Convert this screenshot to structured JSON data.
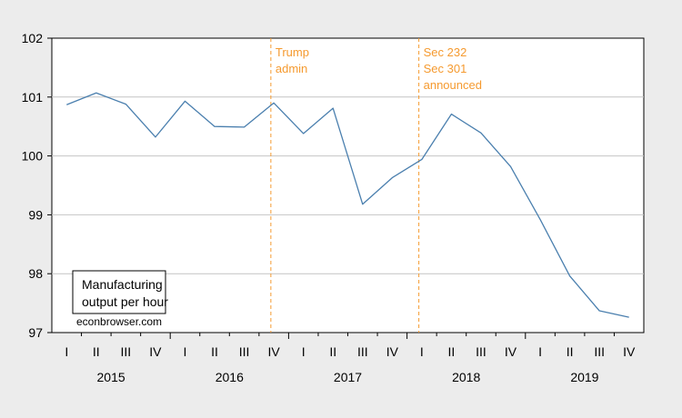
{
  "chart_data": {
    "type": "line",
    "title": "",
    "xlabel": "",
    "ylabel": "",
    "ylim": [
      97,
      102
    ],
    "yticks": [
      "97",
      "98",
      "99",
      "100",
      "101",
      "102"
    ],
    "grid": true,
    "x": [
      "2015 I",
      "2015 II",
      "2015 III",
      "2015 IV",
      "2016 I",
      "2016 II",
      "2016 III",
      "2016 IV",
      "2017 I",
      "2017 II",
      "2017 III",
      "2017 IV",
      "2018 I",
      "2018 II",
      "2018 III",
      "2018 IV",
      "2019 I",
      "2019 II",
      "2019 III",
      "2019 IV"
    ],
    "quarter_labels": [
      "I",
      "II",
      "III",
      "IV",
      "I",
      "II",
      "III",
      "IV",
      "I",
      "II",
      "III",
      "IV",
      "I",
      "II",
      "III",
      "IV",
      "I",
      "II",
      "III",
      "IV"
    ],
    "years": [
      "2015",
      "2016",
      "2017",
      "2018",
      "2019"
    ],
    "series": [
      {
        "name": "Manufacturing output per hour",
        "color": "#4a7fae",
        "values": [
          100.87,
          101.07,
          100.88,
          100.32,
          100.93,
          100.5,
          100.49,
          100.9,
          100.38,
          100.81,
          99.18,
          99.63,
          99.94,
          100.71,
          100.39,
          99.82,
          98.92,
          97.96,
          97.37,
          97.26
        ]
      }
    ],
    "annotations": [
      {
        "x": "2016 IV",
        "position": 7.4,
        "lines": [
          "Trump",
          "admin"
        ],
        "color": "#f59a2f"
      },
      {
        "x": "2018 I",
        "position": 12.4,
        "lines": [
          "Sec 232",
          "Sec 301",
          "announced"
        ],
        "color": "#f59a2f"
      }
    ],
    "legend": {
      "placement": "bottom-left",
      "lines": [
        "Manufacturing",
        "output per hour"
      ]
    },
    "credit": "econbrowser.com"
  }
}
